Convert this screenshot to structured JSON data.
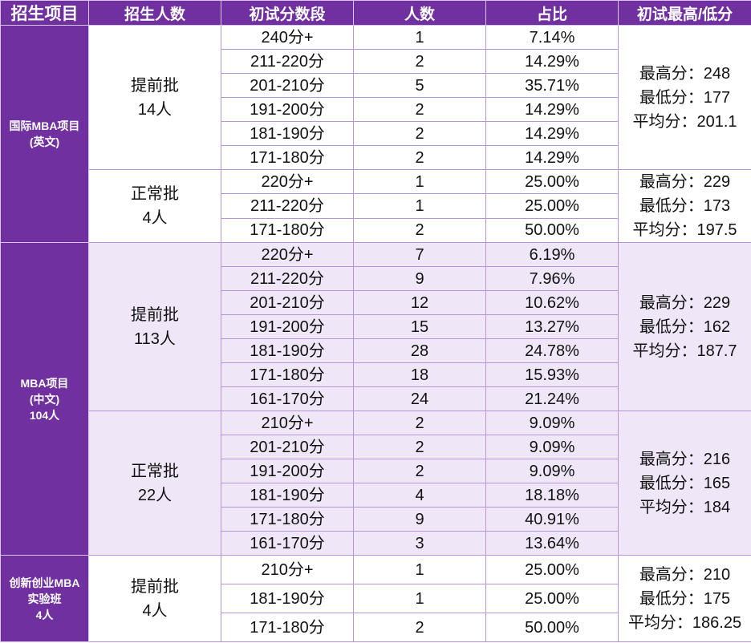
{
  "header": {
    "project": "招生项目",
    "enroll": "招生人数",
    "score_range": "初试分数段",
    "count": "人数",
    "ratio": "占比",
    "stats": "初试最高/低分"
  },
  "groups": [
    {
      "project_lines": [
        "国际MBA项目",
        "(英文)"
      ],
      "batches": [
        {
          "name": "提前批",
          "count": "14人",
          "rows": [
            {
              "range": "240分+",
              "count": "1",
              "ratio": "7.14%"
            },
            {
              "range": "211-220分",
              "count": "2",
              "ratio": "14.29%"
            },
            {
              "range": "201-210分",
              "count": "5",
              "ratio": "35.71%"
            },
            {
              "range": "191-200分",
              "count": "2",
              "ratio": "14.29%"
            },
            {
              "range": "181-190分",
              "count": "2",
              "ratio": "14.29%"
            },
            {
              "range": "171-180分",
              "count": "2",
              "ratio": "14.29%"
            }
          ],
          "stats": [
            "最高分：248",
            "最低分：177",
            "平均分：201.1"
          ]
        },
        {
          "name": "正常批",
          "count": "4人",
          "rows": [
            {
              "range": "220分+",
              "count": "1",
              "ratio": "25.00%"
            },
            {
              "range": "211-220分",
              "count": "1",
              "ratio": "25.00%"
            },
            {
              "range": "171-180分",
              "count": "2",
              "ratio": "50.00%"
            }
          ],
          "stats": [
            "最高分：229",
            "最低分：173",
            "平均分：197.5"
          ]
        }
      ]
    },
    {
      "project_lines": [
        "MBA项目",
        "(中文)",
        "104人"
      ],
      "batches": [
        {
          "name": "提前批",
          "count": "113人",
          "rows": [
            {
              "range": "220分+",
              "count": "7",
              "ratio": "6.19%"
            },
            {
              "range": "211-220分",
              "count": "9",
              "ratio": "7.96%"
            },
            {
              "range": "201-210分",
              "count": "12",
              "ratio": "10.62%"
            },
            {
              "range": "191-200分",
              "count": "15",
              "ratio": "13.27%"
            },
            {
              "range": "181-190分",
              "count": "28",
              "ratio": "24.78%"
            },
            {
              "range": "171-180分",
              "count": "18",
              "ratio": "15.93%"
            },
            {
              "range": "161-170分",
              "count": "24",
              "ratio": "21.24%"
            }
          ],
          "stats": [
            "最高分：229",
            "最低分：162",
            "平均分：187.7"
          ]
        },
        {
          "name": "正常批",
          "count": "22人",
          "rows": [
            {
              "range": "210分+",
              "count": "2",
              "ratio": "9.09%"
            },
            {
              "range": "201-210分",
              "count": "2",
              "ratio": "9.09%"
            },
            {
              "range": "191-200分",
              "count": "2",
              "ratio": "9.09%"
            },
            {
              "range": "181-190分",
              "count": "4",
              "ratio": "18.18%"
            },
            {
              "range": "171-180分",
              "count": "9",
              "ratio": "40.91%"
            },
            {
              "range": "161-170分",
              "count": "3",
              "ratio": "13.64%"
            }
          ],
          "stats": [
            "最高分：216",
            "最低分：165",
            "平均分：184"
          ]
        }
      ]
    },
    {
      "project_lines": [
        "创新创业MBA",
        "实验班",
        "4人"
      ],
      "batches": [
        {
          "name": "提前批",
          "count": "4人",
          "rows": [
            {
              "range": "210分+",
              "count": "1",
              "ratio": "25.00%"
            },
            {
              "range": "181-190分",
              "count": "1",
              "ratio": "25.00%"
            },
            {
              "range": "171-180分",
              "count": "2",
              "ratio": "50.00%"
            }
          ],
          "stats": [
            "最高分：210",
            "最低分：175",
            "平均分：186.25"
          ]
        }
      ]
    }
  ]
}
